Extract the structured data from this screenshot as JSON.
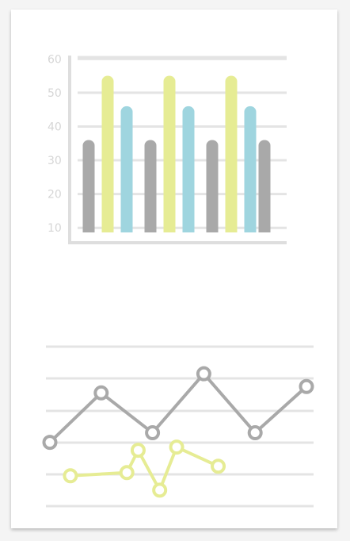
{
  "colors": {
    "gray": "#a9a9a9",
    "yellow": "#e6ec94",
    "blue": "#9fd5df",
    "grid": "#e4e4e4",
    "axis": "#dedede",
    "tick": "#d6d6d6"
  },
  "chart_data": [
    {
      "type": "bar",
      "yticks": [
        "10",
        "20",
        "30",
        "40",
        "50",
        "60"
      ],
      "ylim": [
        7,
        61
      ],
      "grid": true,
      "series": [
        {
          "color": "gray",
          "values": [
            36,
            36,
            36,
            36
          ]
        },
        {
          "color": "yellow",
          "values": [
            55,
            55,
            55
          ]
        },
        {
          "color": "blue",
          "values": [
            46,
            46,
            46
          ]
        }
      ]
    },
    {
      "type": "line",
      "grid": true,
      "ylim": [
        0,
        100
      ],
      "series": [
        {
          "color": "gray",
          "x": [
            0,
            1,
            2,
            3,
            4,
            5
          ],
          "values": [
            40,
            71,
            46,
            83,
            46,
            75
          ]
        },
        {
          "color": "yellow",
          "x": [
            0.4,
            1.5,
            1.72,
            2.14,
            2.47,
            3.28
          ],
          "values": [
            19,
            21,
            35,
            10,
            37,
            25
          ]
        }
      ]
    }
  ]
}
